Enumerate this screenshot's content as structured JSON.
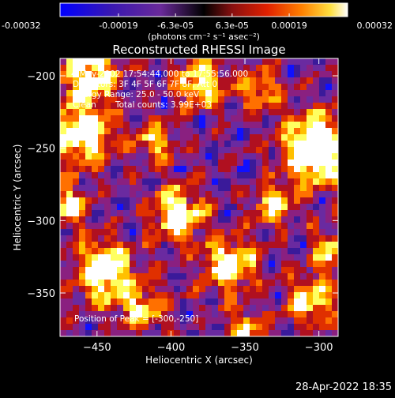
{
  "window": {
    "footer_timestamp": "28-Apr-2022 18:35"
  },
  "colorbar": {
    "tick_labels": [
      "-0.00032",
      "-0.00019",
      "-6.3e-05",
      "6.3e-05",
      "0.00019",
      "0.00032"
    ],
    "unit_label": "(photons cm⁻² s⁻¹ asec⁻²)",
    "range": [
      -0.00032,
      0.00032
    ]
  },
  "plot": {
    "title": "Reconstructed RHESSI Image",
    "xlabel": "Heliocentric X (arcsec)",
    "ylabel": "Heliocentric Y (arcsec)",
    "xlim": [
      -475,
      -287
    ],
    "ylim": [
      -380,
      -188
    ],
    "x_ticks": [
      {
        "value": -450,
        "label": "−450"
      },
      {
        "value": -400,
        "label": "−400"
      },
      {
        "value": -350,
        "label": "−350"
      },
      {
        "value": -300,
        "label": "−300"
      }
    ],
    "y_ticks": [
      {
        "value": -200,
        "label": "−200"
      },
      {
        "value": -250,
        "label": "−250"
      },
      {
        "value": -300,
        "label": "−300"
      },
      {
        "value": -350,
        "label": "−350"
      }
    ],
    "annotations": {
      "time_range": "4-May-2002 17:54:44.000 to 17:55:56.000",
      "detectors": "Detectors: 3F 4F 5F 6F 7F 8F, Att 0",
      "energy_range": "Energy Range: 25.0 - 50.0 keV",
      "algorithm": "Clean",
      "total_counts": "Total counts: 3.99E+03",
      "peak_position": "Position of Peak = [-300,-250]"
    },
    "peak": {
      "x": -300,
      "y": -250
    }
  },
  "chart_data": {
    "type": "heatmap",
    "title": "Reconstructed RHESSI Image",
    "xlabel": "Heliocentric X (arcsec)",
    "ylabel": "Heliocentric Y (arcsec)",
    "xlim": [
      -475,
      -287
    ],
    "ylim": [
      -380,
      -188
    ],
    "colormap": [
      "#1010ff",
      "#3a1a9a",
      "#6a2aa0",
      "#8a2080",
      "#b01020",
      "#e03000",
      "#ff7000",
      "#ffc000",
      "#ffff60",
      "#ffffff"
    ],
    "value_range": [
      -0.00032,
      0.00032
    ],
    "peak_position": [
      -300,
      -250
    ]
  }
}
